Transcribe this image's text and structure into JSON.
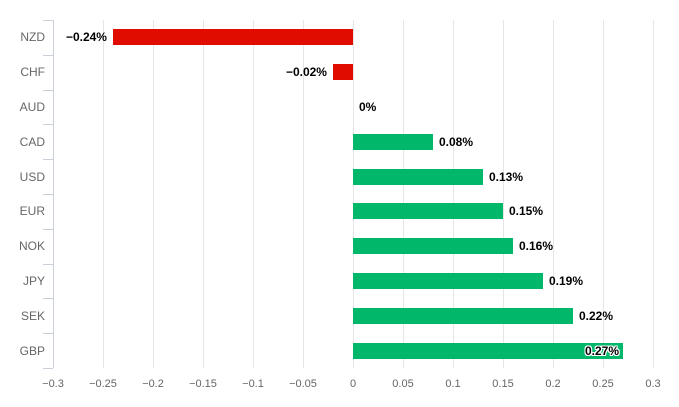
{
  "chart": {
    "background": "#ffffff",
    "positive_color": "#00b76a",
    "negative_color": "#e00c00",
    "grid_color": "#e6e6e6",
    "axis_color": "#ccd0da",
    "label_color": "#666666",
    "data_label_color": "#000000"
  },
  "chart_data": {
    "type": "bar",
    "orientation": "horizontal",
    "title": "",
    "xlabel": "",
    "ylabel": "",
    "grid": true,
    "legend": false,
    "categories": [
      "NZD",
      "CHF",
      "AUD",
      "CAD",
      "USD",
      "EUR",
      "NOK",
      "JPY",
      "SEK",
      "GBP"
    ],
    "values": [
      -0.24,
      -0.02,
      0,
      0.08,
      0.13,
      0.15,
      0.16,
      0.19,
      0.22,
      0.27
    ],
    "value_labels": [
      "−0.24%",
      "−0.02%",
      "0%",
      "0.08%",
      "0.13%",
      "0.15%",
      "0.16%",
      "0.19%",
      "0.22%",
      "0.27%"
    ],
    "xlim": [
      -0.3,
      0.3
    ],
    "x_tick_step": 0.05,
    "x_tick_labels": [
      "−0.3",
      "−0.25",
      "−0.2",
      "−0.15",
      "−0.1",
      "−0.05",
      "0",
      "0.05",
      "0.1",
      "0.15",
      "0.2",
      "0.25",
      "0.3"
    ]
  }
}
